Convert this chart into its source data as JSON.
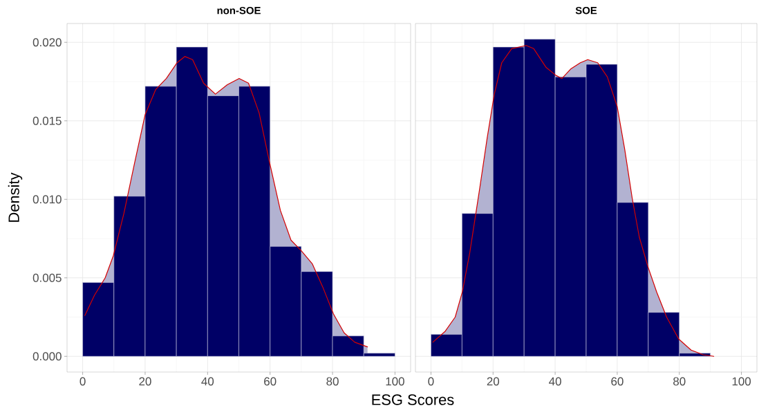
{
  "chart_data": [
    {
      "type": "histogram",
      "title": "non-SOE",
      "xlabel": "ESG Scores",
      "ylabel": "Density",
      "color": "#000066",
      "bins": [
        0,
        10,
        20,
        30,
        40,
        50,
        60,
        70,
        80,
        90,
        100
      ],
      "values": [
        0.0047,
        0.0102,
        0.0172,
        0.0197,
        0.0166,
        0.0172,
        0.007,
        0.0054,
        0.0013,
        0.0002
      ],
      "series": [
        {
          "type": "line",
          "color": "#d40000",
          "x": [
            0.7,
            3.8,
            7.2,
            9.8,
            13.2,
            16.6,
            20,
            23.4,
            26.8,
            30.2,
            32.7,
            35.2,
            38.7,
            42.5,
            46.3,
            50.1,
            53.1,
            56.5,
            59.9,
            63.3,
            66.7,
            70.1,
            73.5,
            76.9,
            80.3,
            83.7,
            87.1,
            91.2
          ],
          "values": [
            0.0026,
            0.0039,
            0.005,
            0.0064,
            0.0091,
            0.0123,
            0.0154,
            0.017,
            0.0177,
            0.0187,
            0.0191,
            0.0189,
            0.0174,
            0.0167,
            0.0173,
            0.0177,
            0.0174,
            0.0155,
            0.0123,
            0.0093,
            0.0074,
            0.0067,
            0.0059,
            0.0044,
            0.0027,
            0.0015,
            0.0009,
            0.0006
          ],
          "lower": [
            0,
            0,
            0,
            0,
            0,
            0,
            0,
            0,
            0,
            0,
            0,
            0,
            0,
            0,
            0,
            0,
            0,
            0,
            0,
            0,
            0,
            0,
            0,
            0,
            0,
            0,
            0,
            0
          ],
          "upper": [
            0.0026,
            0.0039,
            0.005,
            0.0064,
            0.0091,
            0.0123,
            0.0154,
            0.017,
            0.0177,
            0.0187,
            0.0191,
            0.0189,
            0.0174,
            0.0167,
            0.0173,
            0.0177,
            0.0174,
            0.0155,
            0.0123,
            0.0093,
            0.0074,
            0.0067,
            0.0059,
            0.0044,
            0.0027,
            0.0015,
            0.0009,
            0.0006
          ]
        }
      ],
      "xlim": [
        -5,
        105
      ],
      "ylim": [
        -0.001,
        0.0212
      ],
      "xticks": [
        0,
        20,
        40,
        60,
        80,
        100
      ],
      "yticks": [
        {
          "value": 0,
          "label": "0.000"
        },
        {
          "value": 0.005,
          "label": "0.005"
        },
        {
          "value": 0.01,
          "label": "0.010"
        },
        {
          "value": 0.015,
          "label": "0.015"
        },
        {
          "value": 0.02,
          "label": "0.020"
        }
      ],
      "grid": true
    },
    {
      "type": "histogram",
      "title": "SOE",
      "color": "#000066",
      "bins": [
        0,
        10,
        20,
        30,
        40,
        50,
        60,
        70,
        80,
        90
      ],
      "values": [
        0.0014,
        0.0091,
        0.0197,
        0.0202,
        0.0178,
        0.0186,
        0.0098,
        0.0028,
        0.0002
      ],
      "series": [
        {
          "type": "line",
          "color": "#d40000",
          "x": [
            0.6,
            4.6,
            7.8,
            10.1,
            12.5,
            15.7,
            18.1,
            20.4,
            22.8,
            26,
            30.7,
            33.1,
            37.1,
            40.2,
            42.2,
            45,
            48.1,
            50.5,
            53.7,
            56.8,
            60,
            62.4,
            64.8,
            67.1,
            69.9,
            72.7,
            75.9,
            79.8,
            83.8,
            87.7,
            91.1
          ],
          "values": [
            0.0009,
            0.0016,
            0.0025,
            0.0041,
            0.0066,
            0.0107,
            0.0139,
            0.0167,
            0.0187,
            0.0196,
            0.0198,
            0.0196,
            0.0184,
            0.0179,
            0.0177,
            0.0183,
            0.0187,
            0.0189,
            0.0187,
            0.0178,
            0.0159,
            0.0132,
            0.0101,
            0.0076,
            0.0057,
            0.0041,
            0.0025,
            0.0011,
            0.0004,
            0.0001,
            0.0
          ],
          "lower": [
            0,
            0,
            0,
            0,
            0,
            0,
            0,
            0,
            0,
            0,
            0,
            0,
            0,
            0,
            0,
            0,
            0,
            0,
            0,
            0,
            0,
            0,
            0,
            0,
            0,
            0,
            0,
            0,
            0,
            0,
            0
          ],
          "upper": [
            0.0009,
            0.0016,
            0.0025,
            0.0041,
            0.0066,
            0.0107,
            0.0139,
            0.0167,
            0.0187,
            0.0196,
            0.0198,
            0.0196,
            0.0184,
            0.0179,
            0.0177,
            0.0183,
            0.0187,
            0.0189,
            0.0187,
            0.0178,
            0.0159,
            0.0132,
            0.0101,
            0.0076,
            0.0057,
            0.0041,
            0.0025,
            0.0011,
            0.0004,
            0.0001,
            0.0
          ]
        }
      ],
      "xlim": [
        -5,
        105
      ],
      "ylim": [
        -0.001,
        0.0212
      ],
      "xticks": [
        0,
        20,
        40,
        60,
        80,
        100
      ],
      "yticks": [
        0,
        0.005,
        0.01,
        0.015,
        0.02
      ],
      "grid": true,
      "tick_labels": "x"
    }
  ]
}
